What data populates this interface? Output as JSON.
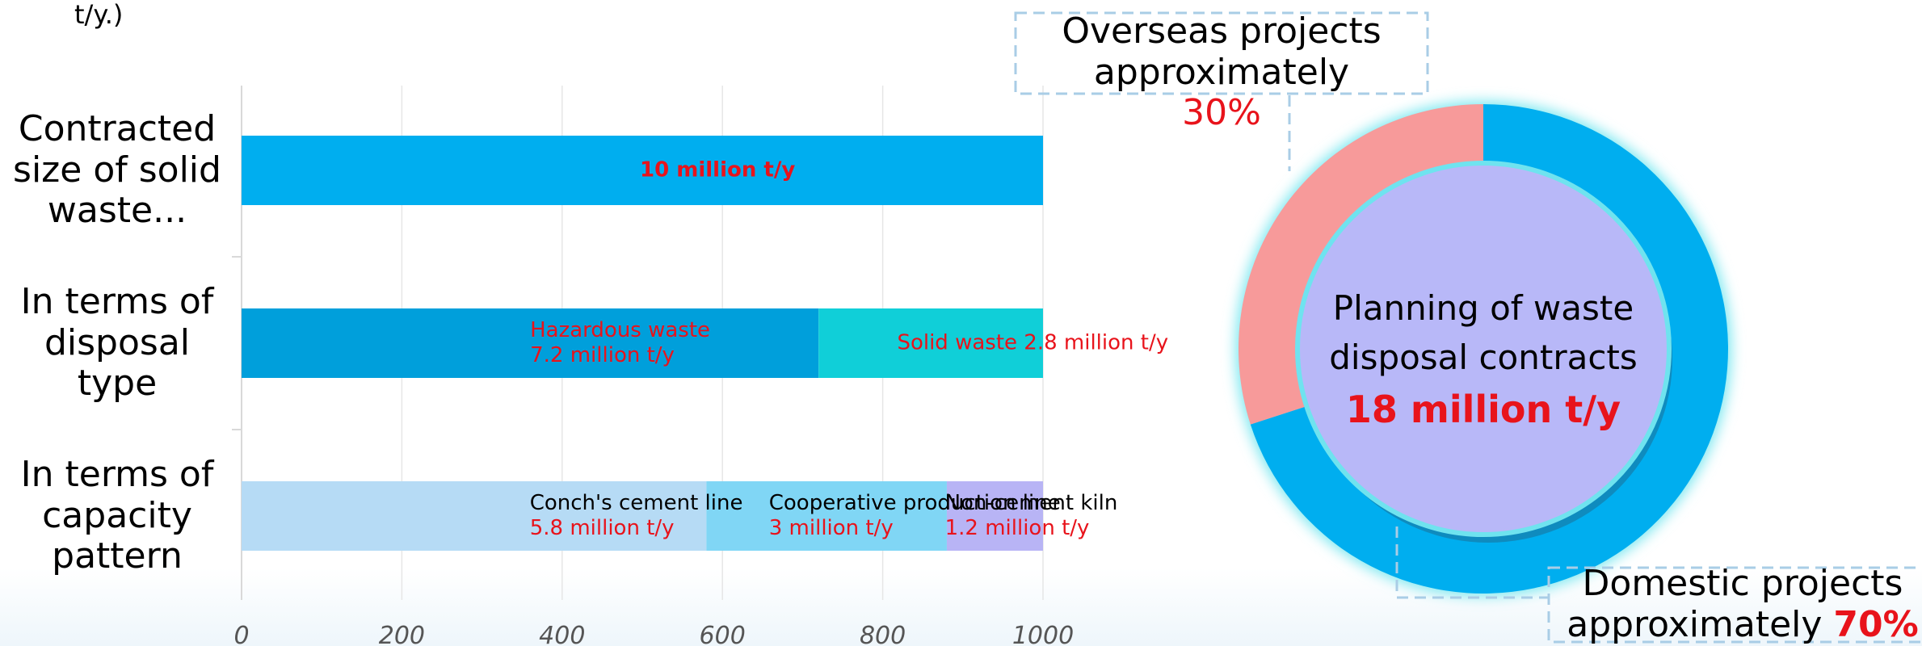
{
  "note": "t/y.)",
  "chart_data": [
    {
      "type": "bar",
      "xlim": [
        0,
        1000
      ],
      "xticks": [
        0,
        200,
        400,
        600,
        800,
        1000
      ],
      "grid": true,
      "rows": [
        {
          "category": "Contracted size of solid waste...",
          "segments": [
            {
              "value": 1000,
              "value_label": "10 million t/y",
              "color": "#00aeef"
            }
          ]
        },
        {
          "category": "In terms of disposal type",
          "segments": [
            {
              "name": "Hazardous waste",
              "value": 720,
              "value_label": "7.2 million t/y",
              "color": "#009fdb"
            },
            {
              "name": "Solid waste",
              "value": 280,
              "value_label": "2.8 million t/y",
              "color": "#10cfd8"
            }
          ]
        },
        {
          "category": "In terms of capacity pattern",
          "segments": [
            {
              "name": "Conch's cement line",
              "value": 580,
              "value_label": "5.8 million t/y",
              "color": "#b6dbf5"
            },
            {
              "name": "Cooperative production line",
              "value": 300,
              "value_label": "3 million t/y",
              "color": "#80d6f5"
            },
            {
              "name": "Non-cement kiln",
              "value": 120,
              "value_label": "1.2 million t/y",
              "color": "#b8b4f5"
            }
          ]
        }
      ]
    },
    {
      "type": "donut",
      "title": "Planning of waste disposal contracts",
      "subtitle": "18 million t/y",
      "center_color": "#b8b8f8",
      "categories": [
        "Domestic projects approximately",
        "Overseas projects approximately"
      ],
      "values": [
        70,
        30
      ],
      "value_labels": [
        "70%",
        "30%"
      ],
      "colors": [
        "#00aeef",
        "#f79a9a"
      ]
    }
  ]
}
